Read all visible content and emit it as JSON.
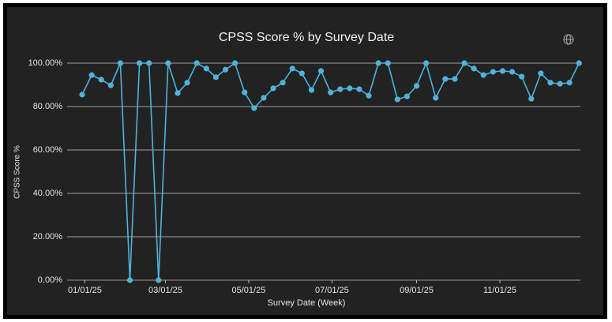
{
  "chart_data": {
    "type": "line",
    "title": "CPSS Score % by Survey Date",
    "x_label": "Survey Date (Week)",
    "y_label": "CPSS Score %",
    "x": [
      "12/30/24",
      "01/06/25",
      "01/13/25",
      "01/20/25",
      "01/27/25",
      "02/03/25",
      "02/10/25",
      "02/17/25",
      "02/24/25",
      "03/03/25",
      "03/10/25",
      "03/17/25",
      "03/24/25",
      "03/31/25",
      "04/07/25",
      "04/14/25",
      "04/21/25",
      "04/28/25",
      "05/05/25",
      "05/12/25",
      "05/19/25",
      "05/26/25",
      "06/02/25",
      "06/09/25",
      "06/16/25",
      "06/23/25",
      "06/30/25",
      "07/07/25",
      "07/14/25",
      "07/21/25",
      "07/28/25",
      "08/04/25",
      "08/11/25",
      "08/18/25",
      "08/25/25",
      "09/01/25",
      "09/08/25",
      "09/15/25",
      "09/22/25",
      "09/29/25",
      "10/06/25",
      "10/13/25",
      "10/20/25",
      "10/27/25",
      "11/03/25",
      "11/10/25",
      "11/17/25",
      "11/24/25",
      "12/01/25",
      "12/08/25",
      "12/15/25",
      "12/22/25",
      "12/29/25"
    ],
    "series": [
      {
        "name": "CPSS Score %",
        "color": "#4fb3d9",
        "values": [
          85.5,
          94.5,
          92.4,
          89.8,
          100,
          0,
          100,
          100,
          0,
          100,
          86.2,
          91,
          100,
          97.5,
          93.5,
          97,
          100,
          86.5,
          79.3,
          84,
          88.4,
          91,
          97.5,
          95.3,
          87.6,
          96.4,
          86.5,
          88,
          88.4,
          88,
          85,
          100,
          100,
          83.3,
          84.7,
          89.5,
          100,
          84,
          92.7,
          92.7,
          100,
          97.5,
          94.5,
          96,
          96.4,
          96,
          93.8,
          83.6,
          95.3,
          91,
          90.5,
          91,
          100
        ]
      }
    ],
    "xlim": [
      "12/19/24",
      "12/30/25"
    ],
    "xticks": [
      "01/01/25",
      "03/01/25",
      "05/01/25",
      "07/01/25",
      "09/01/25",
      "11/01/25"
    ],
    "ylim": [
      0,
      100
    ],
    "yticks": [
      {
        "value": 0,
        "label": "0.00%"
      },
      {
        "value": 20,
        "label": "20.00%"
      },
      {
        "value": 40,
        "label": "40.00%"
      },
      {
        "value": 60,
        "label": "60.00%"
      },
      {
        "value": 80,
        "label": "80.00%"
      },
      {
        "value": 100,
        "label": "100.00%"
      }
    ],
    "grid": true
  }
}
